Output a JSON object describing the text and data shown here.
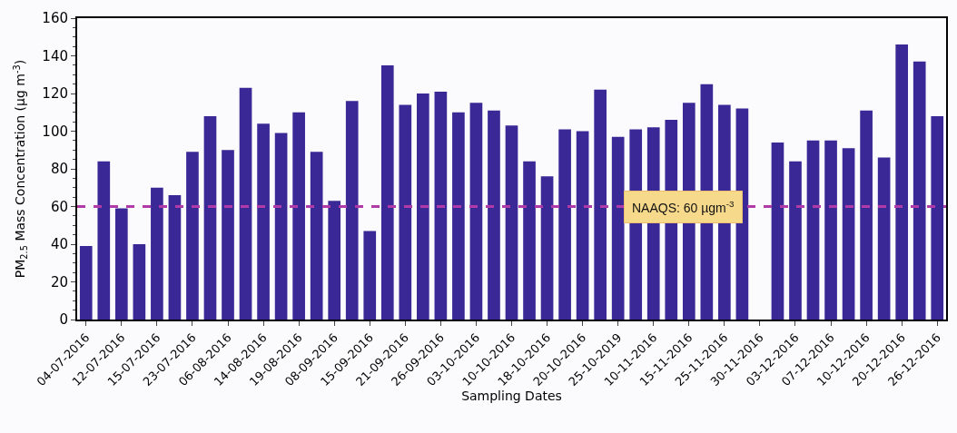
{
  "chart_data": {
    "type": "bar",
    "xlabel": "Sampling Dates",
    "ylabel": "PM$_{2.5}$ Mass Concentration (µg m$^{-3}$)",
    "categories": [
      "04-07-2016",
      null,
      "12-07-2016",
      null,
      "15-07-2016",
      null,
      "23-07-2016",
      null,
      "06-08-2016",
      null,
      "14-08-2016",
      null,
      "19-08-2016",
      null,
      "08-09-2016",
      null,
      "15-09-2016",
      null,
      "21-09-2016",
      null,
      "26-09-2016",
      null,
      "03-10-2016",
      null,
      "10-10-2016",
      null,
      "18-10-2016",
      null,
      "20-10-2016",
      null,
      "25-10-2019",
      null,
      "10-11-2016",
      null,
      "15-11-2016",
      null,
      "25-11-2016",
      null,
      "30-11-2016",
      null,
      "03-12-2016",
      null,
      "07-12-2016",
      null,
      "10-12-2016",
      null,
      "20-12-2016",
      null,
      "26-12-2016"
    ],
    "values": [
      39,
      84,
      59,
      40,
      70,
      66,
      89,
      108,
      90,
      123,
      104,
      99,
      110,
      89,
      63,
      116,
      47,
      135,
      114,
      120,
      121,
      110,
      115,
      111,
      103,
      84,
      76,
      101,
      100,
      122,
      97,
      101,
      102,
      106,
      115,
      125,
      114,
      112,
      null,
      94,
      84,
      95,
      95,
      91,
      111,
      86,
      146,
      137,
      108
    ],
    "color": "#3a2896",
    "ylim": [
      0,
      160
    ],
    "yticks": [
      0,
      20,
      40,
      60,
      80,
      100,
      120,
      140,
      160
    ],
    "ref_lines": [
      {
        "axis": "y",
        "value": 60,
        "label": "NAAQS: 60 µgm$^{-3}$",
        "color": "#b03aa8",
        "line_style": "dashed"
      }
    ],
    "legend": false
  }
}
